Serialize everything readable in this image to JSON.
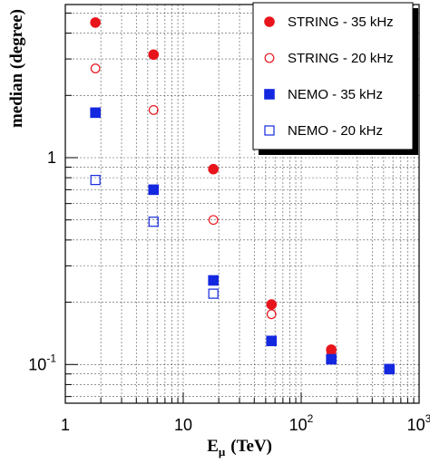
{
  "chart_data": {
    "type": "scatter",
    "xscale": "log",
    "yscale": "log",
    "xlim": [
      1,
      1000
    ],
    "ylim": [
      0.065,
      5.5
    ],
    "grid": true,
    "legend_position": "top-right",
    "xlabel": "E",
    "xlabel_sub": "μ",
    "xlabel_unit": "(TeV)",
    "ylabel": "median (degree)",
    "x_ticks": [
      {
        "value": 1,
        "base": "1",
        "exp": ""
      },
      {
        "value": 10,
        "base": "10",
        "exp": ""
      },
      {
        "value": 100,
        "base": "10",
        "exp": "2"
      },
      {
        "value": 1000,
        "base": "10",
        "exp": "3"
      }
    ],
    "y_ticks": [
      {
        "value": 0.1,
        "base": "10",
        "exp": "-1"
      },
      {
        "value": 1,
        "base": "1",
        "exp": ""
      }
    ],
    "series": [
      {
        "name": "STRING - 35 kHz",
        "marker": "circle",
        "filled": true,
        "color": "#e8141c",
        "x": [
          1.8,
          5.6,
          18,
          56,
          180,
          560
        ],
        "y": [
          4.5,
          3.15,
          0.88,
          0.195,
          0.118,
          0.095
        ]
      },
      {
        "name": "STRING - 20 kHz",
        "marker": "circle",
        "filled": false,
        "color": "#e8141c",
        "x": [
          1.8,
          5.6,
          18,
          56,
          180
        ],
        "y": [
          2.7,
          1.7,
          0.5,
          0.175,
          0.115
        ]
      },
      {
        "name": "NEMO - 35 kHz",
        "marker": "square",
        "filled": true,
        "color": "#1428e0",
        "x": [
          1.8,
          5.6,
          18,
          56,
          180,
          560
        ],
        "y": [
          1.65,
          0.7,
          0.255,
          0.13,
          0.106,
          0.095
        ]
      },
      {
        "name": "NEMO - 20 kHz",
        "marker": "square",
        "filled": false,
        "color": "#1428e0",
        "x": [
          1.8,
          5.6,
          18
        ],
        "y": [
          0.78,
          0.49,
          0.22
        ]
      }
    ]
  }
}
